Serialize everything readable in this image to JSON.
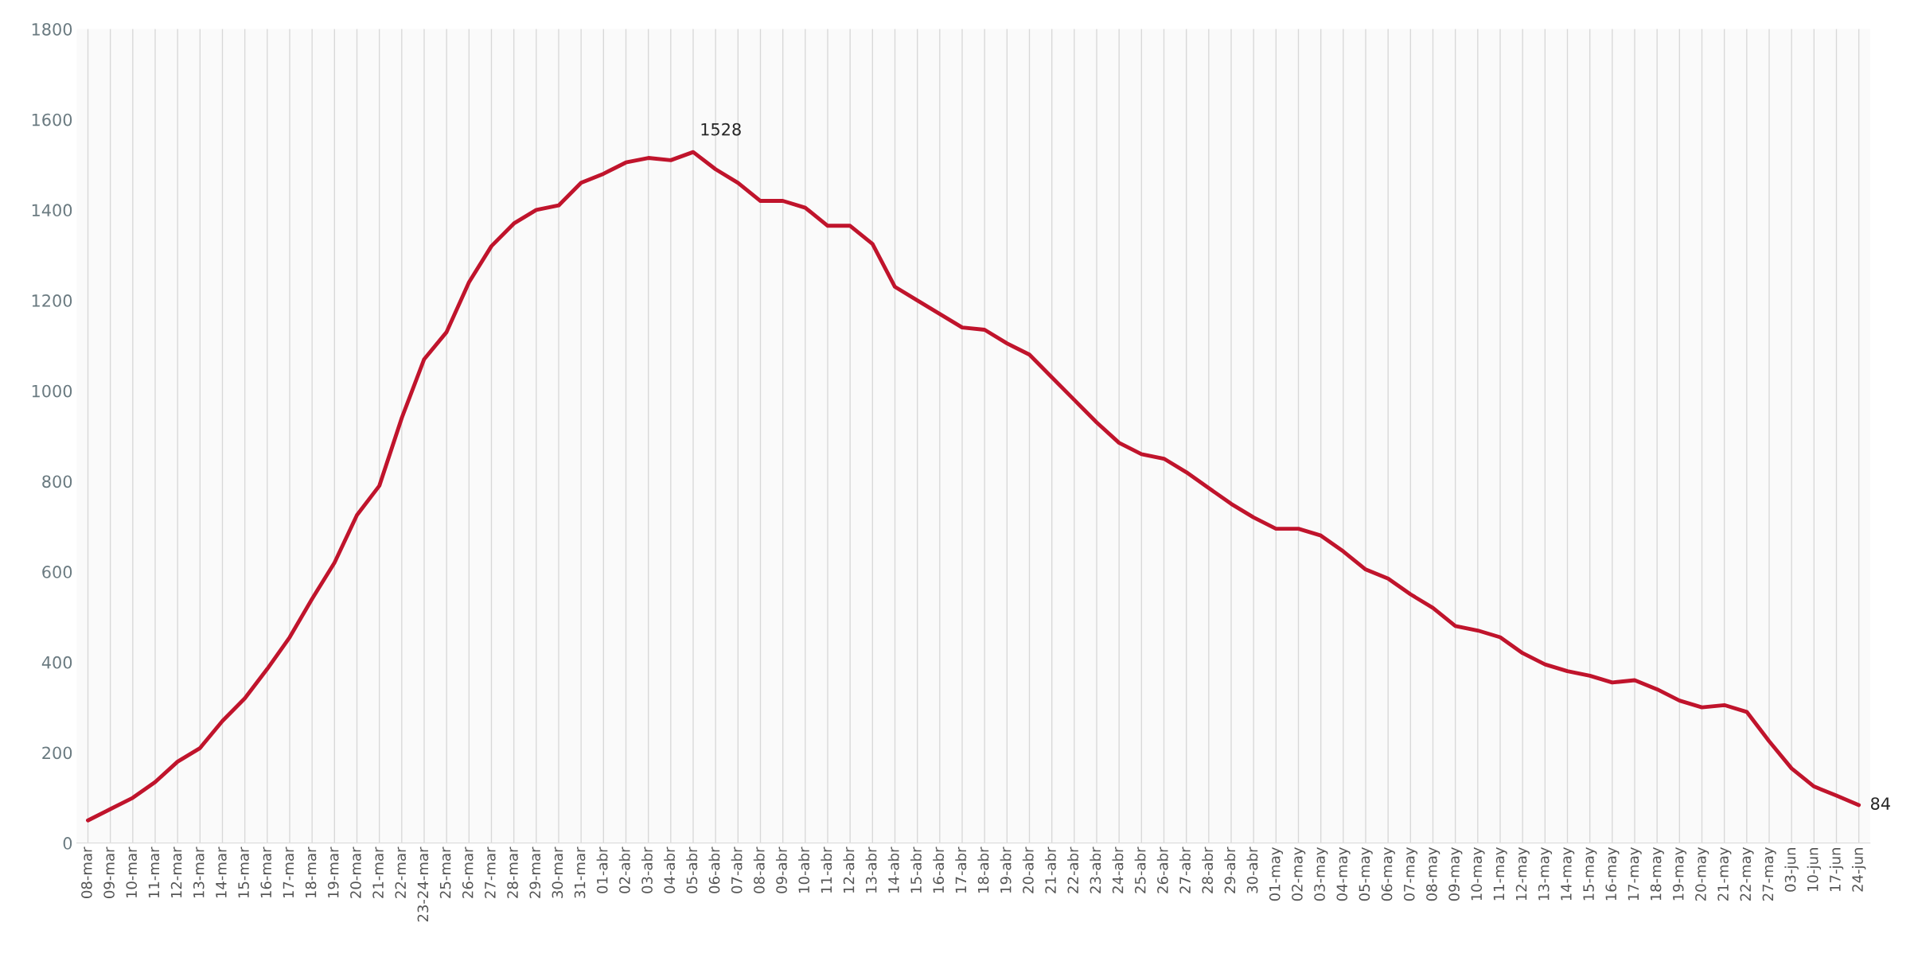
{
  "chart_data": {
    "type": "line",
    "categories": [
      "08-mar",
      "09-mar",
      "10-mar",
      "11-mar",
      "12-mar",
      "13-mar",
      "14-mar",
      "15-mar",
      "16-mar",
      "17-mar",
      "18-mar",
      "19-mar",
      "20-mar",
      "21-mar",
      "22-mar",
      "23-24-mar",
      "25-mar",
      "26-mar",
      "27-mar",
      "28-mar",
      "29-mar",
      "30-mar",
      "31-mar",
      "01-abr",
      "02-abr",
      "03-abr",
      "04-abr",
      "05-abr",
      "06-abr",
      "07-abr",
      "08-abr",
      "09-abr",
      "10-abr",
      "11-abr",
      "12-abr",
      "13-abr",
      "14-abr",
      "15-abr",
      "16-abr",
      "17-abr",
      "18-abr",
      "19-abr",
      "20-abr",
      "21-abr",
      "22-abr",
      "23-abr",
      "24-abr",
      "25-abr",
      "26-abr",
      "27-abr",
      "28-abr",
      "29-abr",
      "30-abr",
      "01-may",
      "02-may",
      "03-may",
      "04-may",
      "05-may",
      "06-may",
      "07-may",
      "08-may",
      "09-may",
      "10-may",
      "11-may",
      "12-may",
      "13-may",
      "14-may",
      "15-may",
      "16-may",
      "17-may",
      "18-may",
      "19-may",
      "20-may",
      "21-may",
      "22-may",
      "27-may",
      "03-jun",
      "10-jun",
      "17-jun",
      "24-jun"
    ],
    "values": [
      50,
      75,
      100,
      135,
      180,
      210,
      270,
      320,
      385,
      455,
      540,
      620,
      725,
      790,
      940,
      1070,
      1130,
      1240,
      1320,
      1370,
      1400,
      1410,
      1460,
      1480,
      1505,
      1515,
      1510,
      1528,
      1490,
      1460,
      1420,
      1420,
      1405,
      1365,
      1365,
      1325,
      1230,
      1200,
      1170,
      1140,
      1135,
      1105,
      1080,
      1030,
      980,
      930,
      885,
      860,
      850,
      820,
      785,
      750,
      720,
      695,
      695,
      680,
      645,
      605,
      585,
      550,
      520,
      480,
      470,
      455,
      420,
      395,
      380,
      370,
      355,
      360,
      340,
      315,
      300,
      305,
      290,
      225,
      165,
      125,
      105,
      84
    ],
    "value_labels": [
      null,
      null,
      null,
      null,
      null,
      null,
      null,
      null,
      null,
      null,
      null,
      null,
      null,
      null,
      null,
      null,
      null,
      null,
      null,
      null,
      null,
      null,
      null,
      null,
      null,
      null,
      null,
      "1528",
      null,
      null,
      null,
      null,
      null,
      null,
      null,
      null,
      null,
      null,
      null,
      null,
      null,
      null,
      null,
      null,
      null,
      null,
      null,
      null,
      null,
      null,
      null,
      null,
      null,
      null,
      null,
      null,
      null,
      null,
      null,
      null,
      null,
      null,
      null,
      null,
      null,
      null,
      null,
      null,
      null,
      null,
      null,
      null,
      null,
      null,
      null,
      null,
      null,
      null,
      null,
      "84"
    ],
    "color": "#c0142c",
    "ylim": [
      0,
      1800
    ],
    "yticks": [
      0,
      200,
      400,
      600,
      800,
      1000,
      1200,
      1400,
      1600,
      1800
    ],
    "grid": "x",
    "marker": "none",
    "line_style": "solid"
  }
}
